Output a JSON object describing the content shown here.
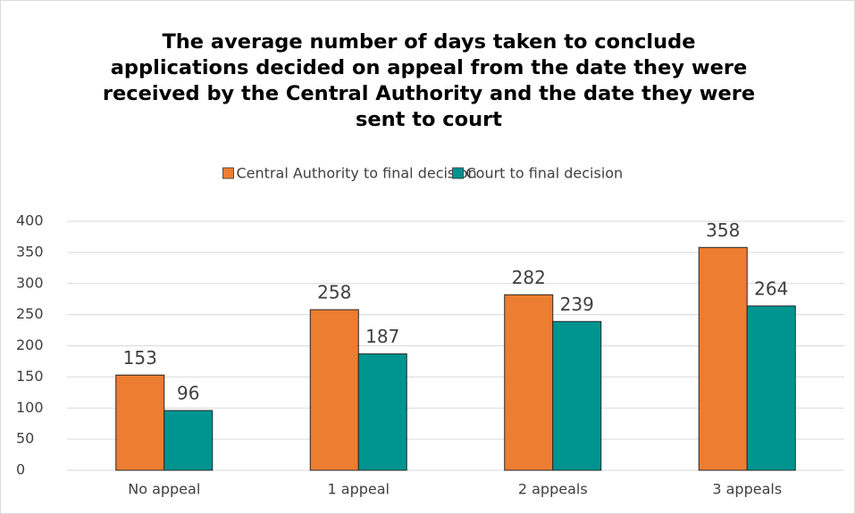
{
  "chart_data": {
    "type": "bar",
    "title": "The average number of days taken to conclude applications decided on appeal from the date they were received by the Central Authority and the date they were sent to court",
    "categories": [
      "No appeal",
      "1 appeal",
      "2 appeals",
      "3 appeals"
    ],
    "series": [
      {
        "name": "Central Authority to final decision",
        "color": "#ed7d31",
        "values": [
          153,
          258,
          282,
          358
        ]
      },
      {
        "name": "Court to final decision",
        "color": "#009491",
        "values": [
          96,
          187,
          239,
          264
        ]
      }
    ],
    "ylim": [
      0,
      400
    ],
    "yticks": [
      0,
      50,
      100,
      150,
      200,
      250,
      300,
      350,
      400
    ],
    "grid": true,
    "legend": "top"
  }
}
